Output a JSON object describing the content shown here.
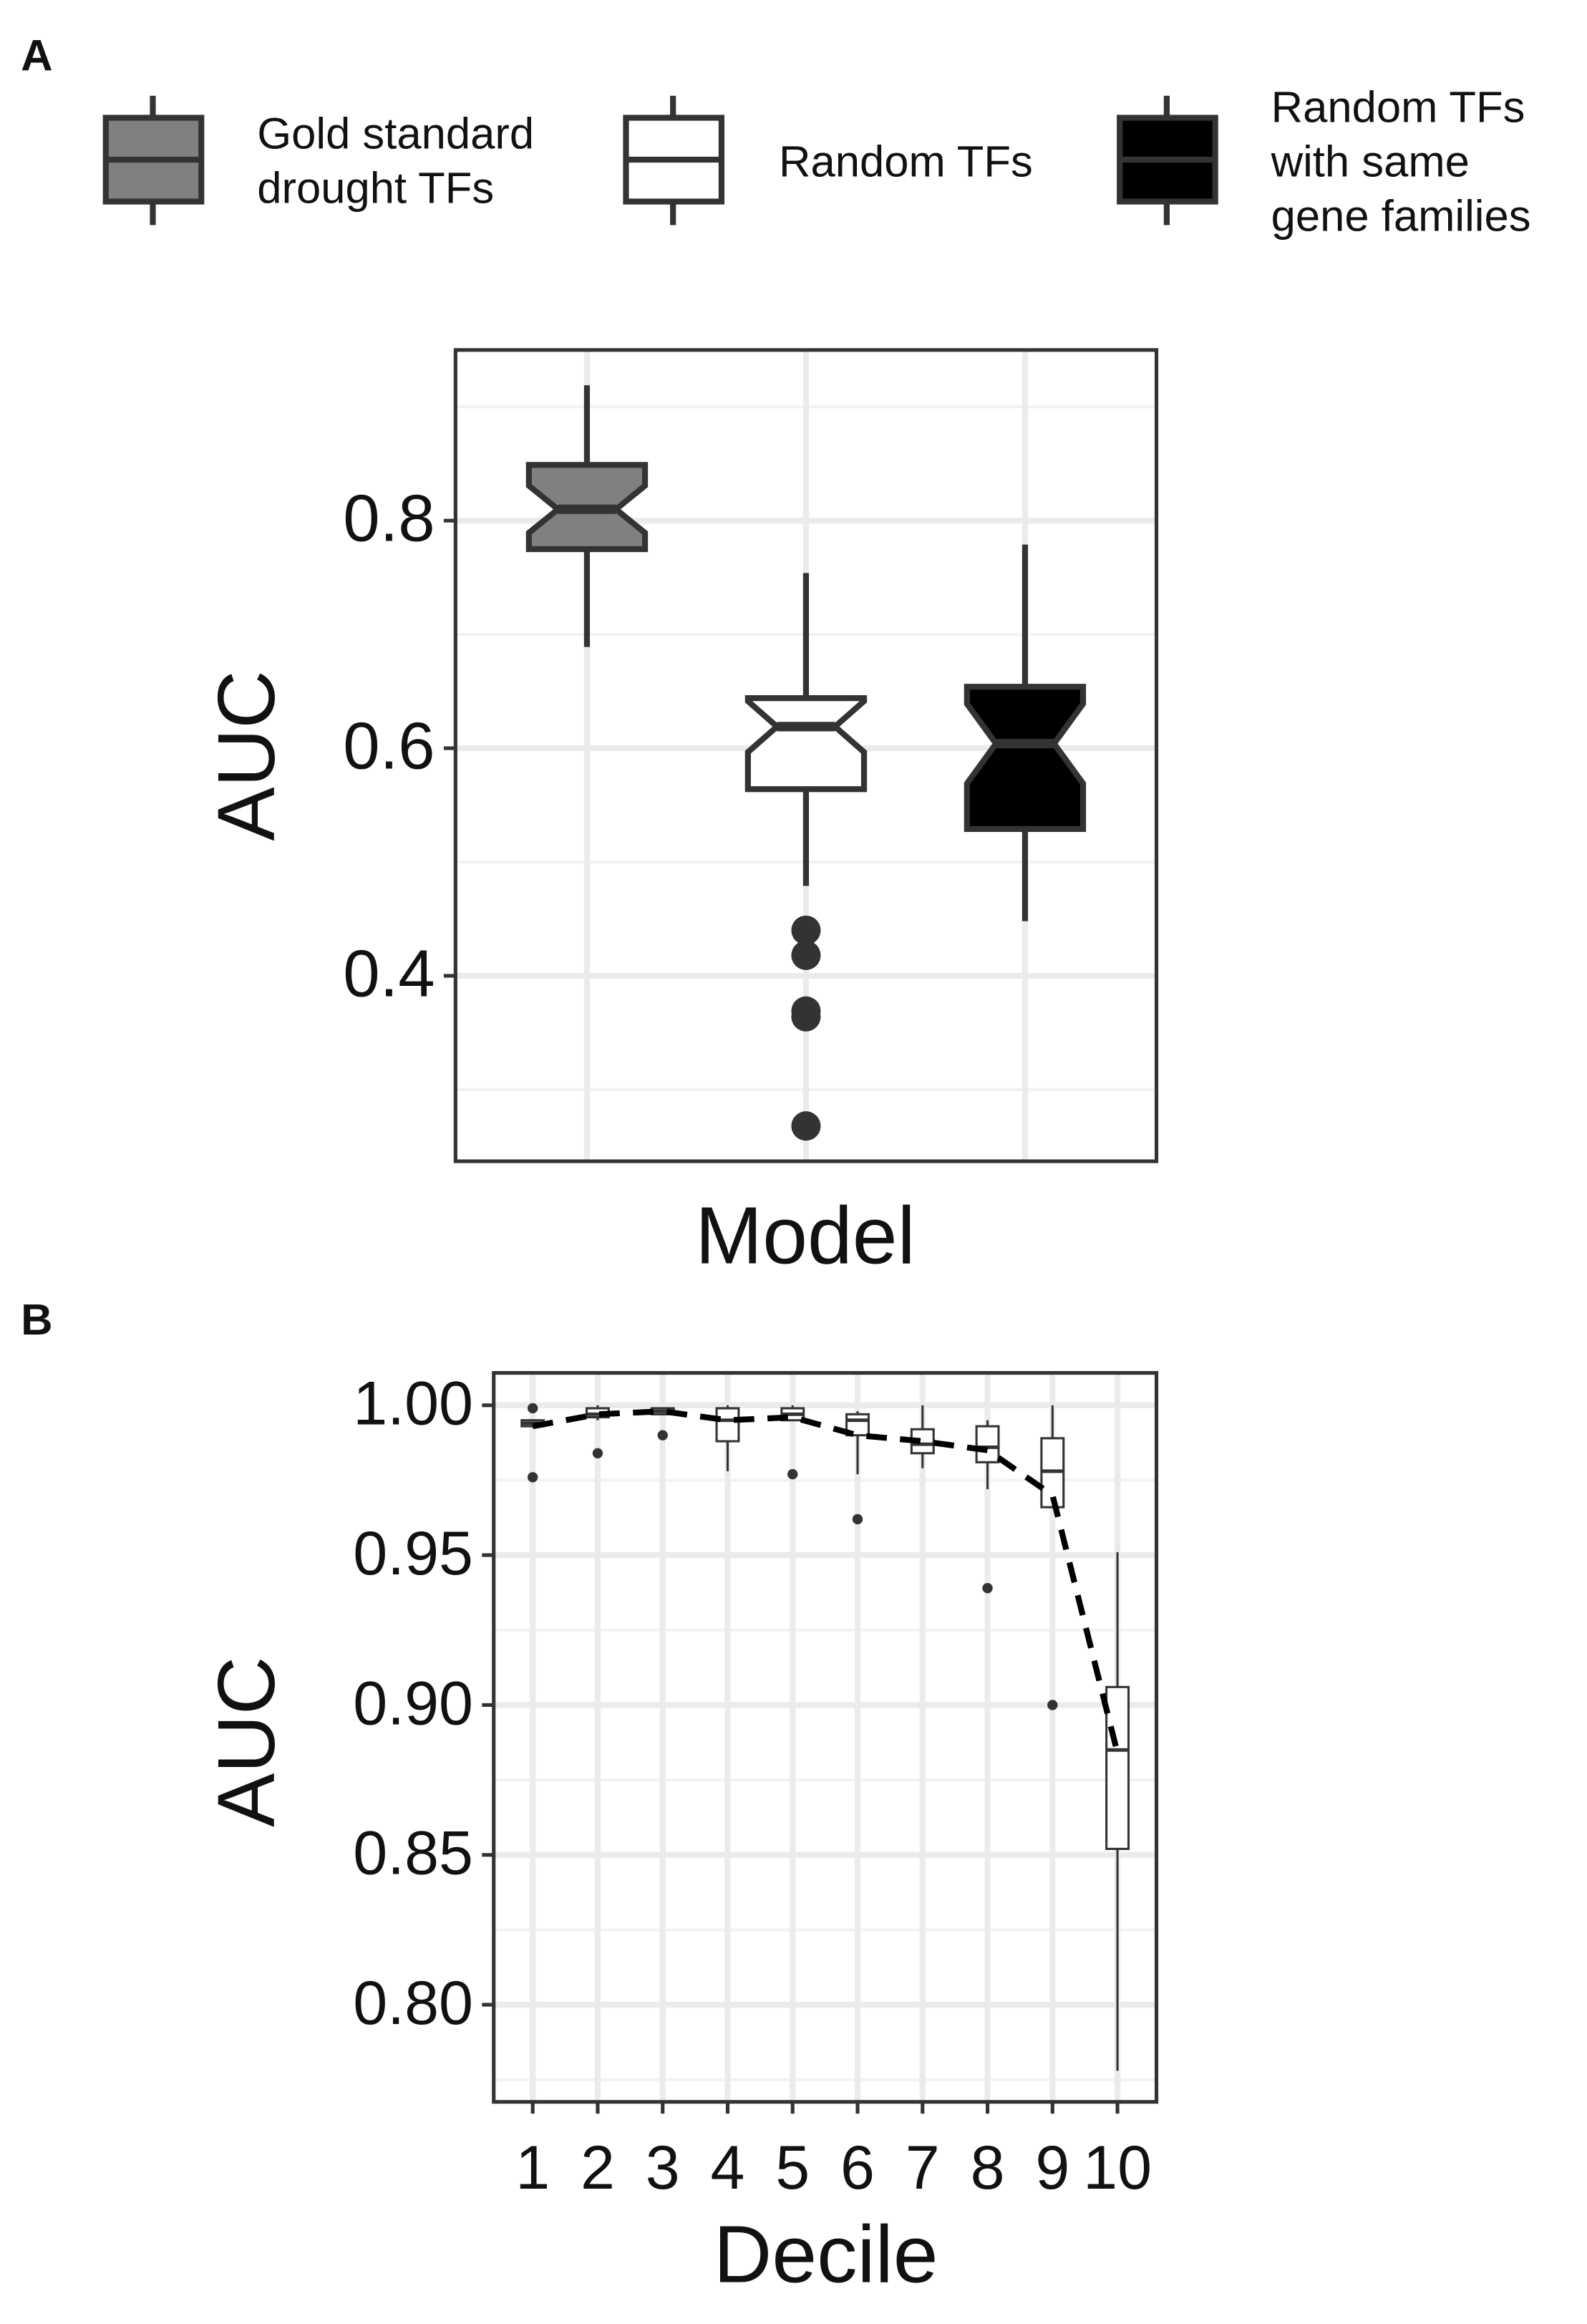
{
  "chart_data": [
    {
      "type": "box",
      "label": "A",
      "xlabel": "Model",
      "ylabel": "AUC",
      "ylim": [
        0.237,
        0.95
      ],
      "yticks": [
        0.4,
        0.6,
        0.8
      ],
      "grid": true,
      "notch": true,
      "legend": "top",
      "series": [
        {
          "name": "Gold standard drought TFs",
          "color": "#808080",
          "low": 0.689,
          "q1": 0.775,
          "median": 0.81,
          "q3": 0.849,
          "high": 0.919,
          "outliers": []
        },
        {
          "name": "Random TFs",
          "color": "#ffffff",
          "low": 0.479,
          "q1": 0.564,
          "median": 0.619,
          "q3": 0.644,
          "high": 0.754,
          "outliers": [
            0.44,
            0.418,
            0.369,
            0.364,
            0.268
          ]
        },
        {
          "name": "Random TFs with same gene families",
          "color": "#000000",
          "low": 0.448,
          "q1": 0.529,
          "median": 0.604,
          "q3": 0.654,
          "high": 0.779,
          "outliers": []
        }
      ]
    },
    {
      "type": "box",
      "label": "B",
      "xlabel": "Decile",
      "ylabel": "AUC",
      "ylim": [
        0.7676,
        1.0108
      ],
      "yticks": [
        {
          "value": 0.8,
          "label": "0.80"
        },
        {
          "value": 0.85,
          "label": "0.85"
        },
        {
          "value": 0.9,
          "label": "0.90"
        },
        {
          "value": 0.95,
          "label": "0.95"
        },
        {
          "value": 1.0,
          "label": "1.00"
        }
      ],
      "grid": true,
      "color": "#ffffff",
      "categories": [
        "1",
        "2",
        "3",
        "4",
        "5",
        "6",
        "7",
        "8",
        "9",
        "10"
      ],
      "boxes": [
        {
          "low": 0.993,
          "q1": 0.993,
          "median": 0.994,
          "q3": 0.995,
          "high": 0.995,
          "outliers": [
            0.999,
            0.976
          ]
        },
        {
          "low": 0.995,
          "q1": 0.996,
          "median": 0.997,
          "q3": 0.999,
          "high": 1.0,
          "outliers": [
            0.984
          ]
        },
        {
          "low": 0.997,
          "q1": 0.997,
          "median": 0.998,
          "q3": 0.999,
          "high": 0.999,
          "outliers": [
            0.99
          ]
        },
        {
          "low": 0.978,
          "q1": 0.988,
          "median": 0.995,
          "q3": 0.999,
          "high": 1.0,
          "outliers": []
        },
        {
          "low": 0.995,
          "q1": 0.995,
          "median": 0.997,
          "q3": 0.999,
          "high": 1.0,
          "outliers": [
            0.977
          ]
        },
        {
          "low": 0.977,
          "q1": 0.99,
          "median": 0.995,
          "q3": 0.997,
          "high": 0.998,
          "outliers": [
            0.962
          ]
        },
        {
          "low": 0.979,
          "q1": 0.984,
          "median": 0.987,
          "q3": 0.992,
          "high": 1.0,
          "outliers": []
        },
        {
          "low": 0.972,
          "q1": 0.981,
          "median": 0.986,
          "q3": 0.993,
          "high": 0.995,
          "outliers": [
            0.939
          ]
        },
        {
          "low": 0.966,
          "q1": 0.966,
          "median": 0.978,
          "q3": 0.989,
          "high": 1.0,
          "outliers": [
            0.9
          ]
        },
        {
          "low": 0.778,
          "q1": 0.852,
          "median": 0.885,
          "q3": 0.906,
          "high": 0.951,
          "outliers": []
        }
      ],
      "line": {
        "values": [
          0.993,
          0.997,
          0.998,
          0.995,
          0.996,
          0.99,
          0.988,
          0.985,
          0.97,
          0.884
        ],
        "color": "#000000",
        "style": "dashed"
      }
    }
  ]
}
